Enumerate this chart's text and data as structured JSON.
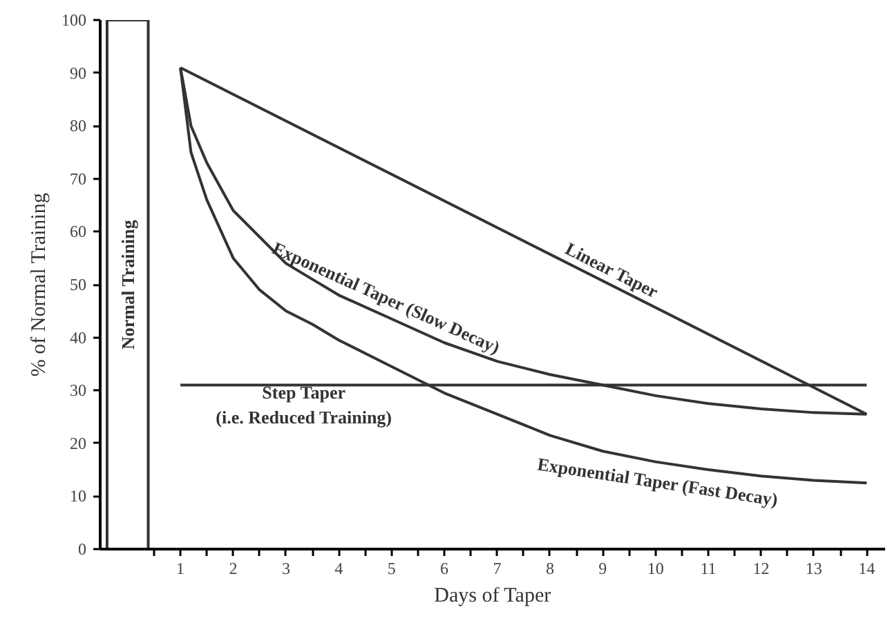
{
  "chart_data": {
    "type": "line",
    "xlabel": "Days of Taper",
    "ylabel": "% of Normal Training",
    "xlim": [
      -0.52,
      14.35
    ],
    "ylim": [
      0,
      100
    ],
    "xticks": [
      1,
      2,
      3,
      4,
      5,
      6,
      7,
      8,
      9,
      10,
      11,
      12,
      13,
      14,
      {
        "value": 0.5,
        "label": null
      },
      {
        "value": 1.5,
        "label": null
      },
      {
        "value": 2.5,
        "label": null
      },
      {
        "value": 3.5,
        "label": null
      },
      {
        "value": 4.5,
        "label": null
      },
      {
        "value": 5.5,
        "label": null
      },
      {
        "value": 6.5,
        "label": null
      },
      {
        "value": 7.5,
        "label": null
      },
      {
        "value": 8.5,
        "label": null
      },
      {
        "value": 9.5,
        "label": null
      },
      {
        "value": 10.5,
        "label": null
      },
      {
        "value": 11.5,
        "label": null
      },
      {
        "value": 12.5,
        "label": null
      },
      {
        "value": 13.5,
        "label": null
      }
    ],
    "yticks": [
      0,
      10,
      20,
      30,
      40,
      50,
      60,
      70,
      80,
      90,
      100
    ],
    "grid": false,
    "series": [
      {
        "type": "bar",
        "name": "Normal Training",
        "color": "#ffffff",
        "x": [
          0
        ],
        "values": [
          100
        ]
      },
      {
        "name": "Linear Taper",
        "color": "#333333",
        "x": [
          1,
          14
        ],
        "values": [
          91,
          25.5
        ]
      },
      {
        "name": "Exponential Taper (Slow Decay)",
        "color": "#333333",
        "x": [
          1,
          1.2,
          1.5,
          2,
          3,
          3.5,
          4,
          5,
          6,
          7,
          8,
          9,
          10,
          11,
          12,
          13,
          14
        ],
        "values": [
          91,
          80,
          73,
          64,
          54,
          51,
          48,
          43.5,
          39,
          35.5,
          33,
          31,
          29,
          27.5,
          26.5,
          25.8,
          25.5
        ]
      },
      {
        "name": "Step Taper\n(i.e. Reduced Training)",
        "color": "#333333",
        "x": [
          1,
          14
        ],
        "values": [
          31,
          31
        ]
      },
      {
        "name": "Exponential Taper (Fast Decay)",
        "color": "#333333",
        "x": [
          1,
          1.2,
          1.5,
          2,
          2.5,
          3,
          3.5,
          4,
          5,
          6,
          7,
          8,
          9,
          10,
          11,
          12,
          13,
          14
        ],
        "values": [
          91,
          75,
          66,
          55,
          49,
          45,
          42.5,
          39.5,
          34.5,
          29.5,
          25.5,
          21.5,
          18.5,
          16.5,
          15,
          13.8,
          13,
          12.5
        ]
      }
    ]
  }
}
